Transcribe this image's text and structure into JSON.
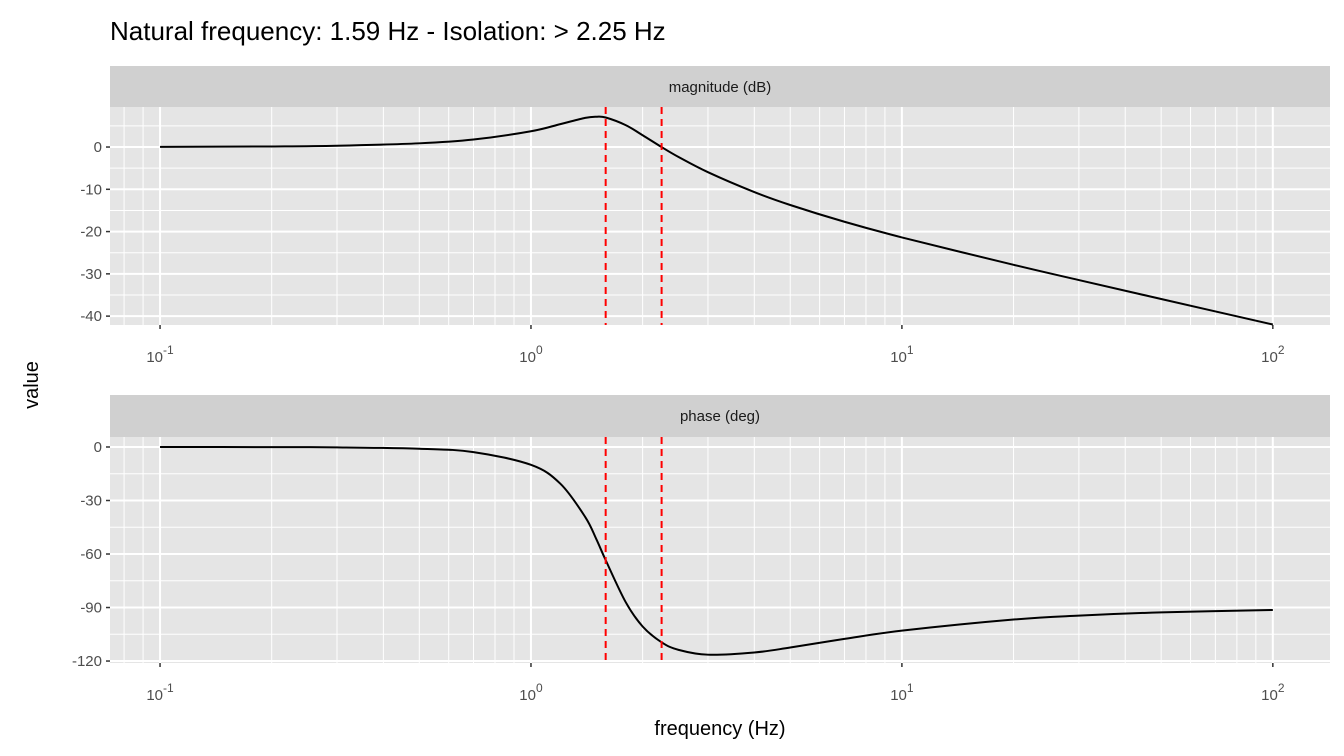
{
  "chart_data": {
    "type": "line",
    "title": "Natural frequency: 1.59 Hz  - Isolation: > 2.25 Hz",
    "xlabel": "frequency (Hz)",
    "ylabel": "value",
    "x_scale": "log10",
    "xlim": [
      0.0733,
      142.6
    ],
    "x_ticks": [
      0.1,
      1,
      10,
      100
    ],
    "x_tick_labels": [
      [
        "10",
        "-1"
      ],
      [
        "10",
        "0"
      ],
      [
        "10",
        "1"
      ],
      [
        "10",
        "2"
      ]
    ],
    "grid": true,
    "vlines": {
      "color": "#FF0000",
      "style": "dashed",
      "x": [
        1.59,
        2.25
      ]
    },
    "line_color": "#000000",
    "x": [
      0.1,
      0.2,
      0.3,
      0.5,
      0.7,
      1.0,
      1.2,
      1.4,
      1.5,
      1.59,
      1.8,
      2.0,
      2.25,
      2.5,
      3,
      4,
      5,
      7,
      10,
      20,
      30,
      50,
      100
    ],
    "panels": [
      {
        "strip": "magnitude (dB)",
        "ylim": [
          -42.1,
          9.47
        ],
        "y_ticks": [
          0,
          -10,
          -20,
          -30,
          -40
        ],
        "y_tick_labels": [
          "0",
          "-10",
          "-20",
          "-30",
          "-40"
        ],
        "y_minor": [
          5,
          -5,
          -15,
          -25,
          -35
        ],
        "values": [
          0.03,
          0.14,
          0.31,
          0.88,
          1.77,
          3.74,
          5.42,
          6.89,
          7.17,
          6.99,
          5.19,
          2.79,
          -0.01,
          -2.36,
          -5.95,
          -10.65,
          -13.71,
          -17.68,
          -21.38,
          -27.86,
          -31.47,
          -35.95,
          -41.99
        ]
      },
      {
        "strip": "phase (deg)",
        "ylim": [
          -121.1,
          5.6
        ],
        "y_ticks": [
          0,
          -30,
          -60,
          -90,
          -120
        ],
        "y_tick_labels": [
          "0",
          "-30",
          "-60",
          "-90",
          "-120"
        ],
        "y_minor": [
          -15,
          -45,
          -75,
          -105
        ],
        "values": [
          0.0,
          -0.06,
          -0.2,
          -0.96,
          -2.86,
          -10.02,
          -20.57,
          -39.2,
          -51.62,
          -63.43,
          -86.94,
          -100.63,
          -109.5,
          -113.73,
          -116.44,
          -115.21,
          -112.43,
          -107.6,
          -102.98,
          -96.74,
          -94.53,
          -92.73,
          -91.36
        ]
      }
    ]
  }
}
